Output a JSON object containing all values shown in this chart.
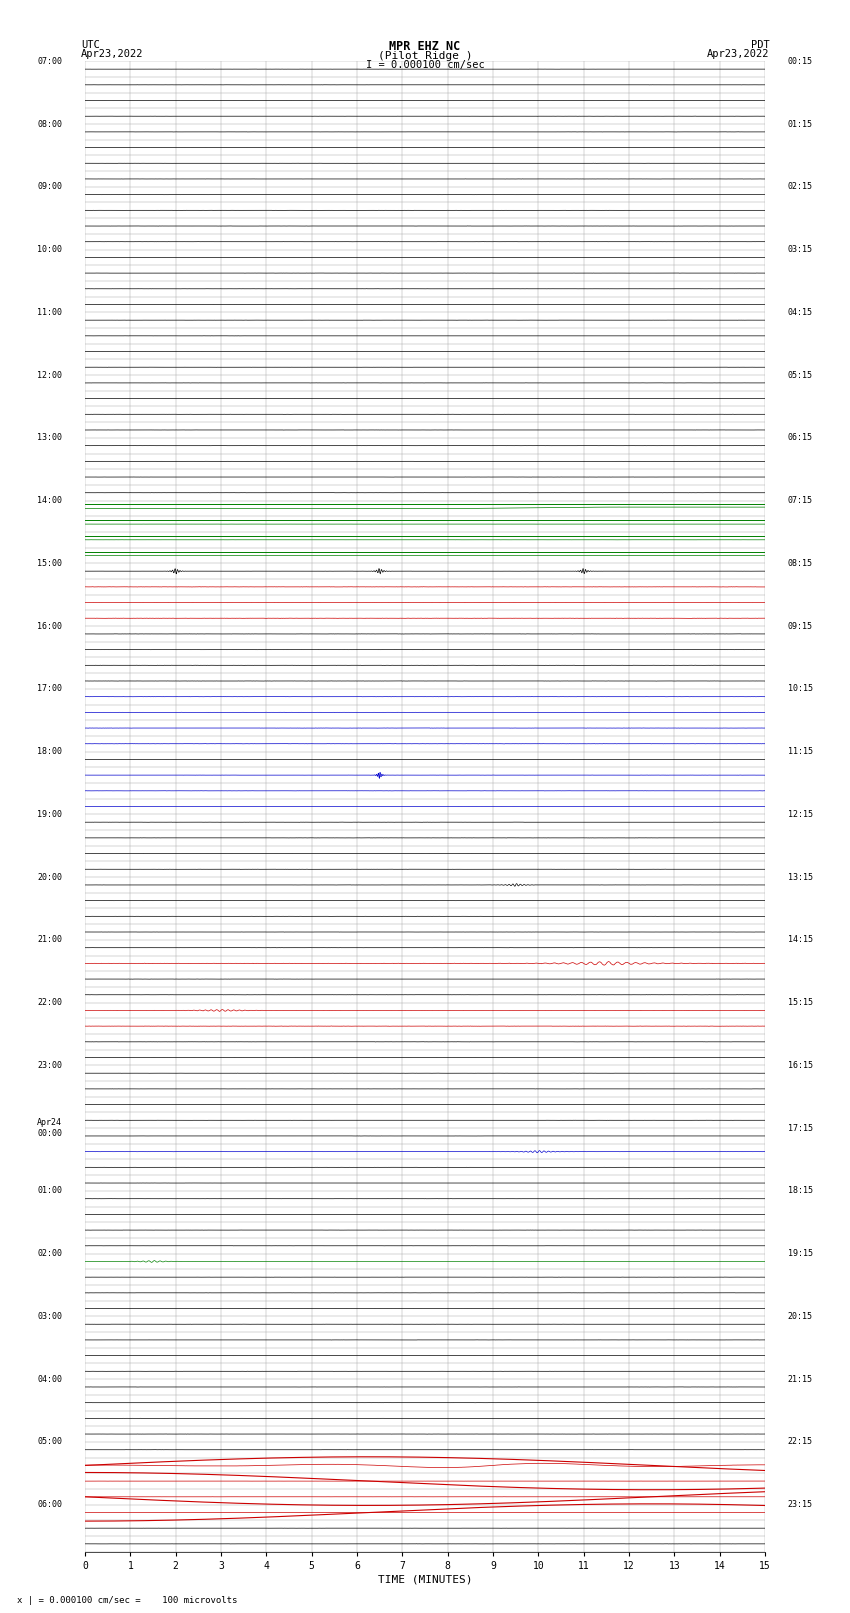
{
  "title_line1": "MPR EHZ NC",
  "title_line2": "(Pilot Ridge )",
  "scale_text": "I = 0.000100 cm/sec",
  "xlabel": "TIME (MINUTES)",
  "footer_text": "x | = 0.000100 cm/sec =    100 microvolts",
  "utc_times": [
    "07:00",
    "",
    "",
    "",
    "08:00",
    "",
    "",
    "",
    "09:00",
    "",
    "",
    "",
    "10:00",
    "",
    "",
    "",
    "11:00",
    "",
    "",
    "",
    "12:00",
    "",
    "",
    "",
    "13:00",
    "",
    "",
    "",
    "14:00",
    "",
    "",
    "",
    "15:00",
    "",
    "",
    "",
    "16:00",
    "",
    "",
    "",
    "17:00",
    "",
    "",
    "",
    "18:00",
    "",
    "",
    "",
    "19:00",
    "",
    "",
    "",
    "20:00",
    "",
    "",
    "",
    "21:00",
    "",
    "",
    "",
    "22:00",
    "",
    "",
    "",
    "23:00",
    "",
    "",
    "",
    "Apr24\n00:00",
    "",
    "",
    "",
    "01:00",
    "",
    "",
    "",
    "02:00",
    "",
    "",
    "",
    "03:00",
    "",
    "",
    "",
    "04:00",
    "",
    "",
    "",
    "05:00",
    "",
    "",
    "",
    "06:00",
    "",
    ""
  ],
  "pdt_times": [
    "00:15",
    "",
    "",
    "",
    "01:15",
    "",
    "",
    "",
    "02:15",
    "",
    "",
    "",
    "03:15",
    "",
    "",
    "",
    "04:15",
    "",
    "",
    "",
    "05:15",
    "",
    "",
    "",
    "06:15",
    "",
    "",
    "",
    "07:15",
    "",
    "",
    "",
    "08:15",
    "",
    "",
    "",
    "09:15",
    "",
    "",
    "",
    "10:15",
    "",
    "",
    "",
    "11:15",
    "",
    "",
    "",
    "12:15",
    "",
    "",
    "",
    "13:15",
    "",
    "",
    "",
    "14:15",
    "",
    "",
    "",
    "15:15",
    "",
    "",
    "",
    "16:15",
    "",
    "",
    "",
    "17:15",
    "",
    "",
    "",
    "18:15",
    "",
    "",
    "",
    "19:15",
    "",
    "",
    "",
    "20:15",
    "",
    "",
    "",
    "21:15",
    "",
    "",
    "",
    "22:15",
    "",
    "",
    "",
    "23:15",
    "",
    ""
  ],
  "n_rows": 68,
  "minutes_per_row": 15,
  "bg_color": "#ffffff",
  "grid_color": "#aaaaaa",
  "subgrid_color": "#dddddd"
}
